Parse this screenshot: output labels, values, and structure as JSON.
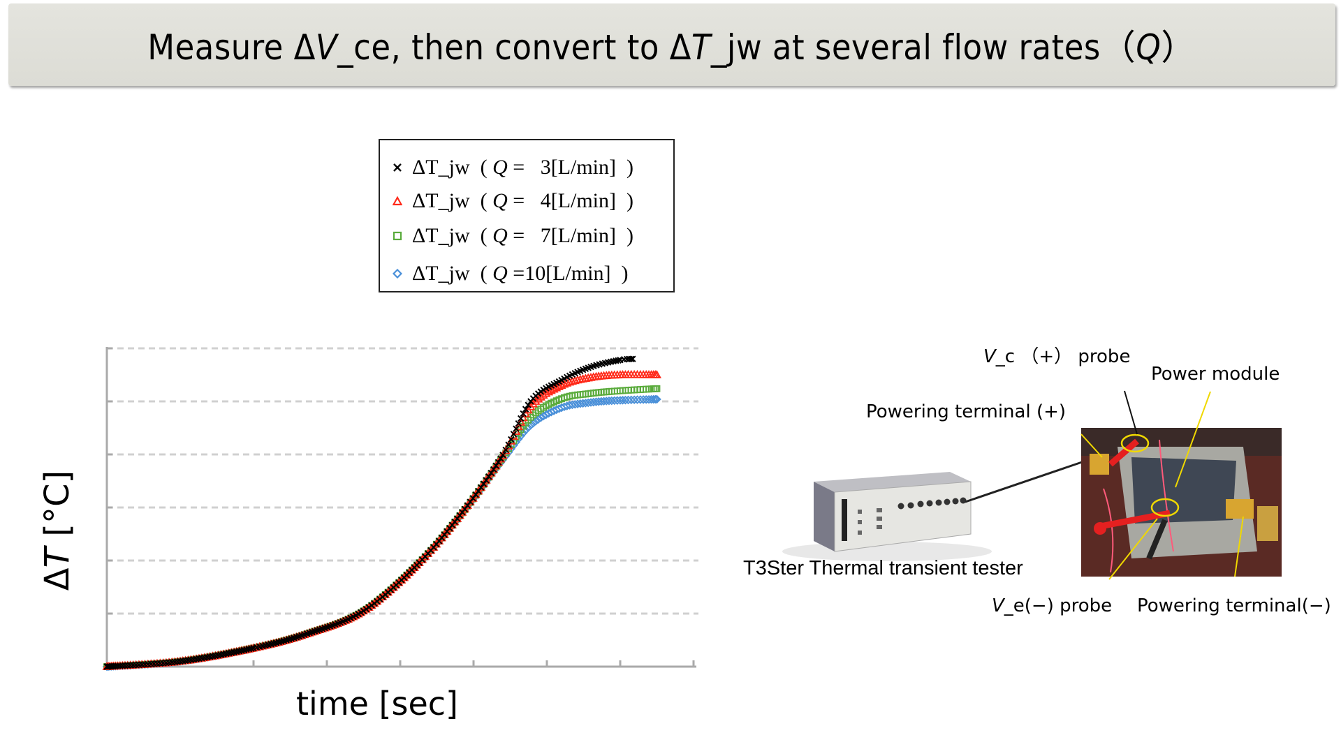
{
  "title": {
    "prefix": "Measure ",
    "delta1": "Δ",
    "var1": "V",
    "sub1": "_ce, then convert to ",
    "delta2": "Δ",
    "var2": "T",
    "sub2": "_jw at several flow rates",
    "paren_open": "（",
    "var3": "Q",
    "paren_close": "）"
  },
  "legend": {
    "items": [
      {
        "marker": "×",
        "label_pre": "ΔT_jw  ( ",
        "q": "Q",
        "label_post": " =   3[L/min]  )",
        "color": "#000000",
        "shape": "x"
      },
      {
        "marker": "△",
        "label_pre": "ΔT_jw  ( ",
        "q": "Q",
        "label_post": " =   4[L/min]  )",
        "color": "#ff2a1a",
        "shape": "triangle"
      },
      {
        "marker": "□",
        "label_pre": "ΔT_jw  ( ",
        "q": "Q",
        "label_post": " =   7[L/min]  )",
        "color": "#5aab3c",
        "shape": "square"
      },
      {
        "marker": "◇",
        "label_pre": "ΔT_jw  ( ",
        "q": "Q",
        "label_post": " =10[L/min]  )",
        "color": "#4a90d9",
        "shape": "diamond"
      }
    ]
  },
  "axes": {
    "ylabel_delta": "Δ",
    "ylabel_var": "T",
    "ylabel_unit": "  [°C]",
    "xlabel": "time [sec]"
  },
  "chart_data": {
    "type": "scatter",
    "title": "",
    "xlabel": "time [sec]",
    "ylabel": "ΔT [°C]",
    "xlim": [
      0,
      8
    ],
    "ylim": [
      0,
      6
    ],
    "x_ticks_visible": [
      2,
      3,
      4,
      5,
      6,
      7,
      8
    ],
    "tick_labels_shown": false,
    "grid": "horizontal dashed",
    "legend_position": "above plot",
    "note": "Axes have no numeric labels; values are in gridline/tick units",
    "series": [
      {
        "name": "ΔT_jw (Q = 3[L/min])",
        "marker": "x",
        "color": "#000000",
        "x": [
          0,
          1,
          2,
          2.73,
          3.5,
          4.26,
          4.88,
          5.4,
          5.78,
          6.2,
          6.6,
          7.0,
          7.17
        ],
        "y": [
          0,
          0.1,
          0.35,
          0.62,
          1.05,
          1.96,
          2.97,
          3.99,
          5.0,
          5.4,
          5.65,
          5.78,
          5.8
        ]
      },
      {
        "name": "ΔT_jw (Q = 4[L/min])",
        "marker": "triangle",
        "color": "#ff2a1a",
        "x": [
          0,
          1,
          2,
          2.73,
          3.5,
          4.26,
          4.88,
          5.4,
          5.78,
          6.2,
          6.6,
          7.0,
          7.5
        ],
        "y": [
          0,
          0.1,
          0.35,
          0.62,
          1.05,
          1.96,
          2.97,
          3.98,
          4.9,
          5.3,
          5.45,
          5.5,
          5.5
        ]
      },
      {
        "name": "ΔT_jw (Q = 7[L/min])",
        "marker": "square",
        "color": "#5aab3c",
        "x": [
          0,
          1,
          2,
          2.73,
          3.5,
          4.26,
          4.88,
          5.4,
          5.78,
          6.2,
          6.6,
          7.0,
          7.5
        ],
        "y": [
          0,
          0.1,
          0.35,
          0.62,
          1.05,
          1.96,
          2.96,
          3.95,
          4.7,
          5.05,
          5.15,
          5.2,
          5.24
        ]
      },
      {
        "name": "ΔT_jw (Q = 10[L/min])",
        "marker": "diamond",
        "color": "#4a90d9",
        "x": [
          0,
          1,
          2,
          2.73,
          3.5,
          4.26,
          4.88,
          5.4,
          5.78,
          6.2,
          6.6,
          7.0,
          7.5
        ],
        "y": [
          0,
          0.1,
          0.35,
          0.62,
          1.05,
          1.96,
          2.95,
          3.9,
          4.55,
          4.88,
          4.98,
          5.02,
          5.04
        ]
      }
    ]
  },
  "setup": {
    "tester_label": "T3Ster Thermal transient tester",
    "vc_probe": {
      "var": "V",
      "text": "_c （+） probe"
    },
    "power_module": "Power module",
    "powering_plus": "Powering terminal (+)",
    "ve_probe": {
      "var": "V",
      "text": "_e(−) probe"
    },
    "powering_minus": "Powering terminal(−)"
  }
}
